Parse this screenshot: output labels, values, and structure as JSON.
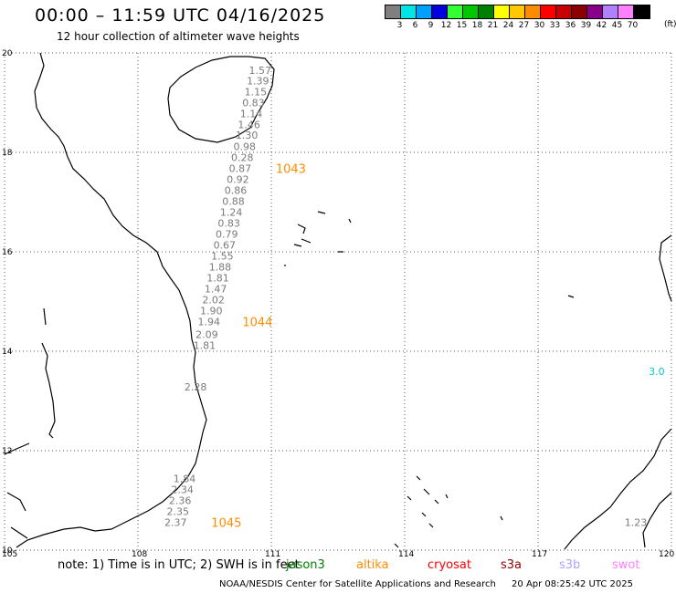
{
  "header": {
    "title": "00:00 – 11:59 UTC 04/16/2025",
    "subtitle": "12 hour collection of altimeter wave heights"
  },
  "scale": {
    "colors": [
      "#7f7f7f",
      "#00e5e5",
      "#00a0ff",
      "#0000e0",
      "#33ff33",
      "#00c800",
      "#008000",
      "#ffff00",
      "#ffc800",
      "#ff8c00",
      "#ff0000",
      "#c80000",
      "#8b0000",
      "#8b008b",
      "#b080ff",
      "#ff80ff",
      "#000000"
    ],
    "labels": [
      "3",
      "6",
      "9",
      "12",
      "15",
      "18",
      "21",
      "24",
      "27",
      "30",
      "33",
      "36",
      "39",
      "42",
      "45",
      "70"
    ],
    "unit": "(ft)"
  },
  "axes": {
    "lat_ticks": [
      "20",
      "18",
      "16",
      "14",
      "12",
      "10"
    ],
    "lon_ticks": [
      "105",
      "108",
      "111",
      "114",
      "117",
      "120"
    ]
  },
  "points": [
    {
      "v": "1.57",
      "lat": 19.65,
      "lon": 111.0
    },
    {
      "v": "1.39",
      "lat": 19.44,
      "lon": 110.95
    },
    {
      "v": "1.15",
      "lat": 19.22,
      "lon": 110.9
    },
    {
      "v": "0.83",
      "lat": 19.0,
      "lon": 110.85
    },
    {
      "v": "1.14",
      "lat": 18.78,
      "lon": 110.8
    },
    {
      "v": "1.46",
      "lat": 18.56,
      "lon": 110.75
    },
    {
      "v": "1.30",
      "lat": 18.35,
      "lon": 110.7
    },
    {
      "v": "0.98",
      "lat": 18.12,
      "lon": 110.65
    },
    {
      "v": "0.28",
      "lat": 17.9,
      "lon": 110.6
    },
    {
      "v": "0.87",
      "lat": 17.68,
      "lon": 110.55
    },
    {
      "v": "0.92",
      "lat": 17.46,
      "lon": 110.5
    },
    {
      "v": "0.86",
      "lat": 17.24,
      "lon": 110.45
    },
    {
      "v": "0.88",
      "lat": 17.02,
      "lon": 110.4
    },
    {
      "v": "1.24",
      "lat": 16.8,
      "lon": 110.35
    },
    {
      "v": "0.83",
      "lat": 16.58,
      "lon": 110.3
    },
    {
      "v": "0.79",
      "lat": 16.36,
      "lon": 110.25
    },
    {
      "v": "0.67",
      "lat": 16.14,
      "lon": 110.2
    },
    {
      "v": "1.55",
      "lat": 15.92,
      "lon": 110.15
    },
    {
      "v": "1.88",
      "lat": 15.7,
      "lon": 110.1
    },
    {
      "v": "1.81",
      "lat": 15.48,
      "lon": 110.05
    },
    {
      "v": "1.47",
      "lat": 15.26,
      "lon": 110.0
    },
    {
      "v": "2.02",
      "lat": 15.04,
      "lon": 109.95
    },
    {
      "v": "1.90",
      "lat": 14.82,
      "lon": 109.9
    },
    {
      "v": "1.94",
      "lat": 14.6,
      "lon": 109.85
    },
    {
      "v": "2.09",
      "lat": 14.34,
      "lon": 109.8
    },
    {
      "v": "1.81",
      "lat": 14.12,
      "lon": 109.75
    },
    {
      "v": "2.28",
      "lat": 13.28,
      "lon": 109.55
    },
    {
      "v": "1.84",
      "lat": 11.44,
      "lon": 109.3
    },
    {
      "v": "2.34",
      "lat": 11.22,
      "lon": 109.25
    },
    {
      "v": "2.36",
      "lat": 11.0,
      "lon": 109.2
    },
    {
      "v": "2.35",
      "lat": 10.78,
      "lon": 109.15
    },
    {
      "v": "2.37",
      "lat": 10.56,
      "lon": 109.1
    },
    {
      "v": "1.23",
      "lat": 10.56,
      "lon": 119.45
    },
    {
      "v": "3.0",
      "lat": 13.6,
      "lon": 119.85,
      "color": "#00c8c8"
    }
  ],
  "pass_ids": [
    {
      "label": "1043",
      "lat": 17.68,
      "lon": 111.1
    },
    {
      "label": "1044",
      "lat": 14.6,
      "lon": 110.35
    },
    {
      "label": "1045",
      "lat": 10.56,
      "lon": 109.65
    }
  ],
  "footer": {
    "note": "note:  1) Time is in UTC;  2) SWH is in feet",
    "legend": [
      {
        "name": "jason3",
        "color": "#008000"
      },
      {
        "name": "altika",
        "color": "#ff8c00"
      },
      {
        "name": "cryosat",
        "color": "#ff0000"
      },
      {
        "name": "s3a",
        "color": "#8b0000"
      },
      {
        "name": "s3b",
        "color": "#b0a0ff"
      },
      {
        "name": "swot",
        "color": "#ff80ff"
      }
    ],
    "credit": "NOAA/NESDIS Center for Satellite Applications and Research",
    "timestamp": "20 Apr 08:25:42 UTC 2025"
  }
}
